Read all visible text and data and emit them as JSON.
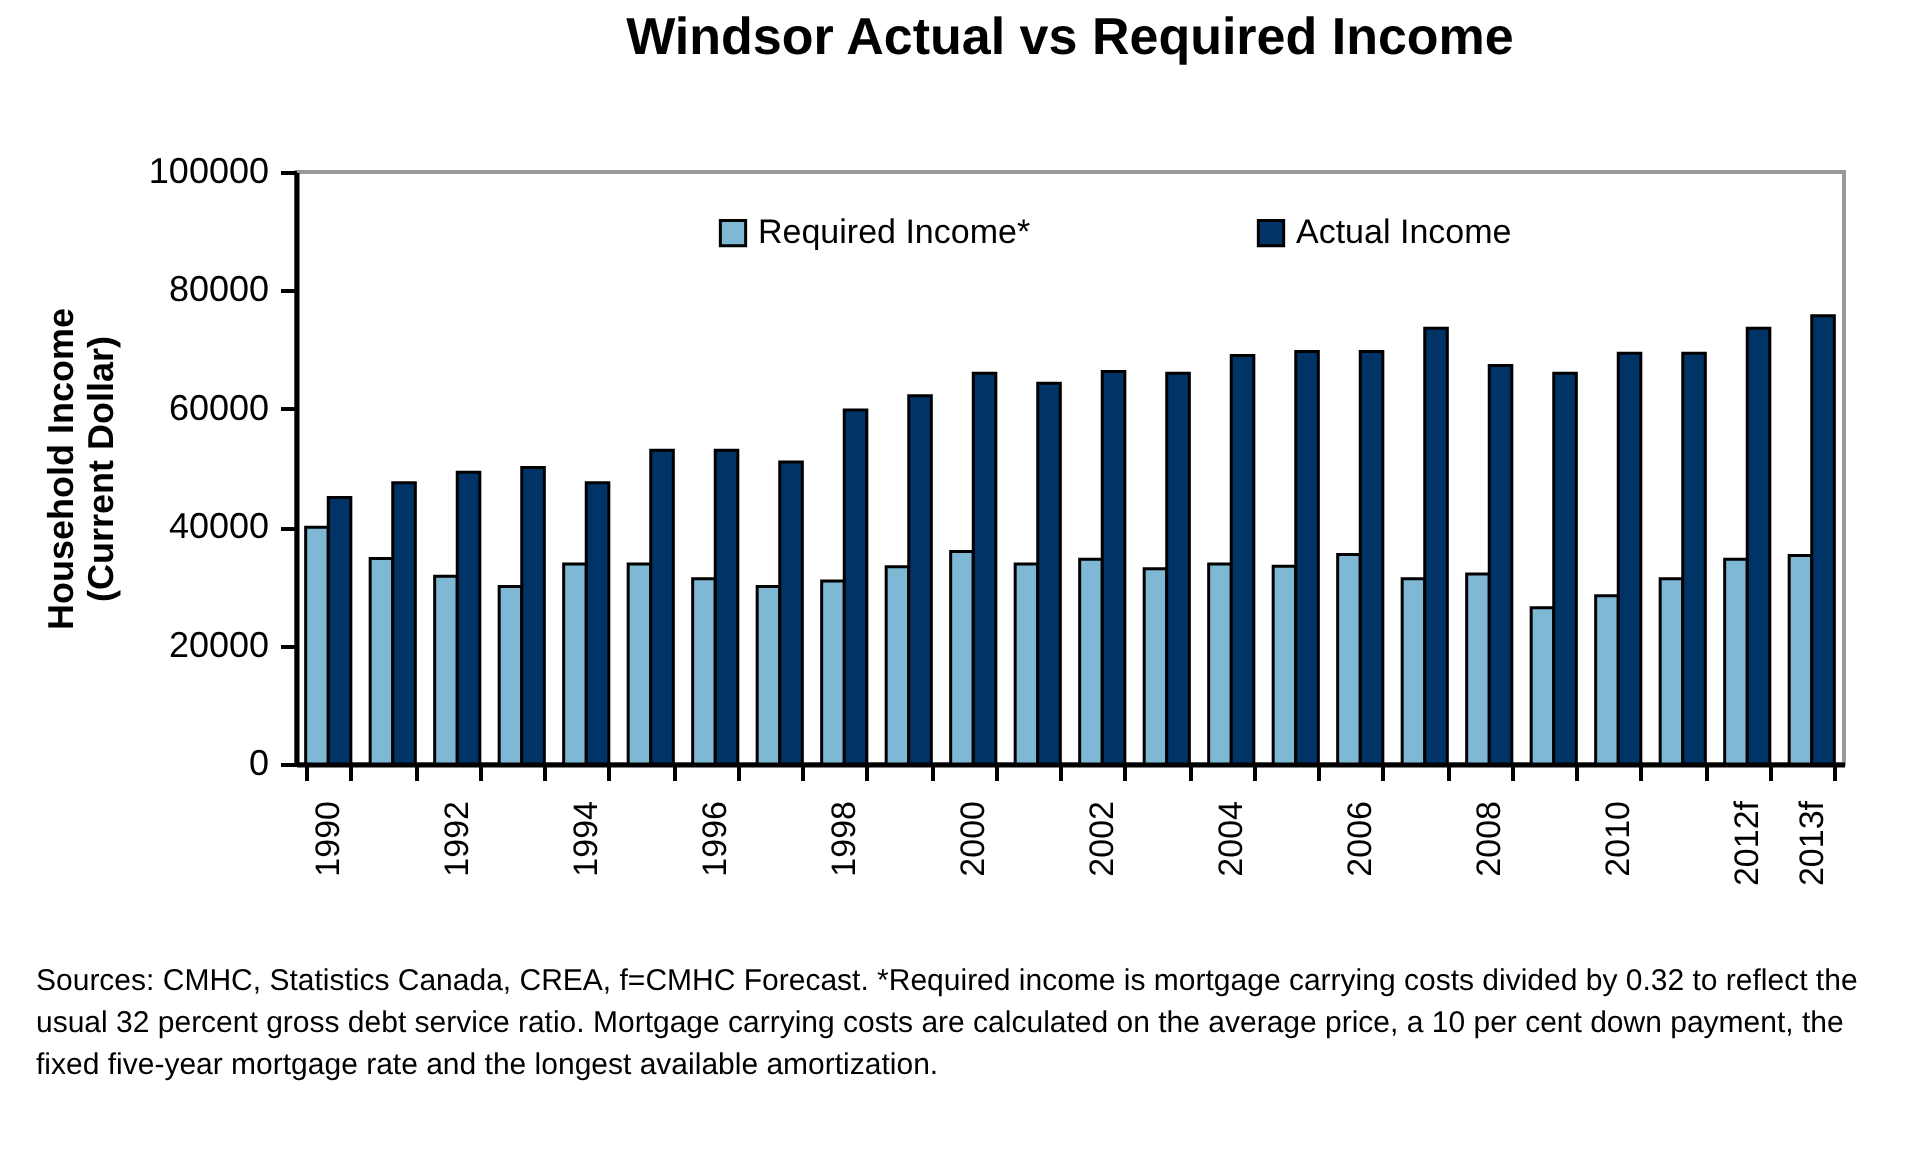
{
  "chart_data": {
    "type": "bar",
    "title": "Windsor Actual vs Required Income",
    "ylabel": "Household Income\n(Current Dollar)",
    "categories": [
      "1990",
      null,
      "1992",
      null,
      "1994",
      null,
      "1996",
      null,
      "1998",
      null,
      "2000",
      null,
      "2002",
      null,
      "2004",
      null,
      "2006",
      null,
      "2008",
      null,
      "2010",
      null,
      "2012f",
      "2013f"
    ],
    "series": [
      {
        "name": "Required Income*",
        "color": "#7fb8d4",
        "values": [
          40000,
          34700,
          31700,
          30000,
          33800,
          33800,
          31300,
          30000,
          30900,
          33300,
          35900,
          33800,
          34600,
          33000,
          33800,
          33400,
          35400,
          31300,
          32100,
          26400,
          28400,
          31300,
          34600,
          35200
        ]
      },
      {
        "name": "Actual Income",
        "color": "#003366",
        "values": [
          45000,
          47500,
          49300,
          50100,
          47500,
          53000,
          53000,
          51000,
          59800,
          62200,
          66000,
          64300,
          66300,
          66000,
          69000,
          69700,
          69700,
          73600,
          67300,
          66000,
          69400,
          69400,
          73600,
          75700
        ]
      }
    ],
    "ylim": [
      0,
      100000
    ],
    "yticks": [
      0,
      20000,
      40000,
      60000,
      80000,
      100000
    ],
    "legend": "top",
    "grid": false,
    "annotations": [
      "Sources: CMHC, Statistics Canada, CREA, f=CMHC Forecast. *Required income is mortgage carrying costs divided by 0.32 to reflect the usual 32 percent gross debt service ratio. Mortgage carrying costs are calculated on the average price, a 10 per cent down payment, the fixed five-year mortgage rate and the longest available amortization."
    ]
  }
}
